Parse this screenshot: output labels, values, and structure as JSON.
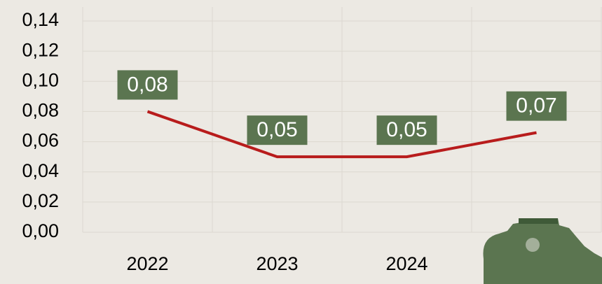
{
  "chart_data": {
    "type": "line",
    "categories": [
      "2022",
      "2023",
      "2024",
      null
    ],
    "series": [
      {
        "color": "#b81c1c",
        "values": [
          0.08,
          0.05,
          0.05,
          0.066
        ],
        "value_labels": [
          "0,08",
          "0,05",
          "0,05",
          "0,07"
        ],
        "label_color": "#5b7550"
      }
    ],
    "ylim": [
      0,
      0.14
    ],
    "yticks": [
      {
        "value": 0,
        "label": "0,00"
      },
      {
        "value": 0.02,
        "label": "0,02"
      },
      {
        "value": 0.04,
        "label": "0,04"
      },
      {
        "value": 0.06,
        "label": "0,06"
      },
      {
        "value": 0.08,
        "label": "0,08"
      },
      {
        "value": 0.1,
        "label": "0,10"
      },
      {
        "value": 0.12,
        "label": "0,12"
      },
      {
        "value": 0.14,
        "label": "0,14"
      }
    ],
    "grid": true
  }
}
